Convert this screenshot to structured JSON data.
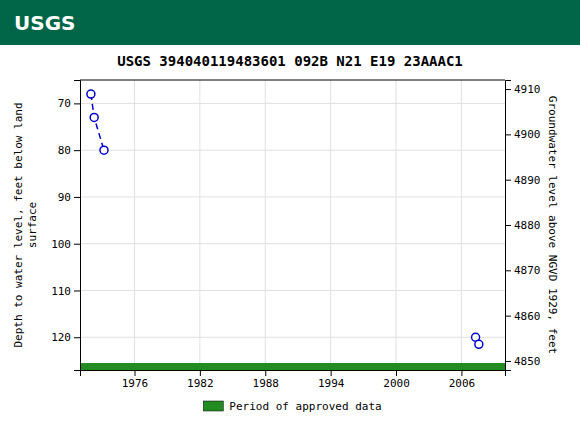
{
  "chart_data": {
    "type": "line",
    "title": "USGS 394040119483601 092B N21 E19 23AAAC1",
    "annotations": [
      "USGS"
    ],
    "ylabel": "Depth to water level, feet below land\nsurface",
    "y2label": "Groundwater level above NGVD 1929, feet",
    "xlim": [
      1971,
      2010
    ],
    "xticks": [
      1976,
      1982,
      1988,
      1994,
      2000,
      2006
    ],
    "ylim": [
      127,
      65
    ],
    "yticks": [
      70,
      80,
      90,
      100,
      110,
      120
    ],
    "y2lim": [
      4848,
      4912
    ],
    "y2ticks": [
      4850,
      4860,
      4870,
      4880,
      4890,
      4900,
      4910
    ],
    "grid": true,
    "legend": "bottom",
    "series": [
      {
        "type": "line",
        "color": "#0000cc",
        "marker": "circle",
        "line_style": "dashed",
        "x": [
          1972.0,
          1972.3,
          1973.2,
          null,
          2007.3,
          2007.6
        ],
        "values": [
          68.0,
          73.0,
          80.0,
          null,
          120.0,
          121.5
        ]
      },
      {
        "name": "Period of approved data",
        "type": "period",
        "color": "#228B22",
        "x": [
          1971,
          2010
        ]
      }
    ]
  }
}
